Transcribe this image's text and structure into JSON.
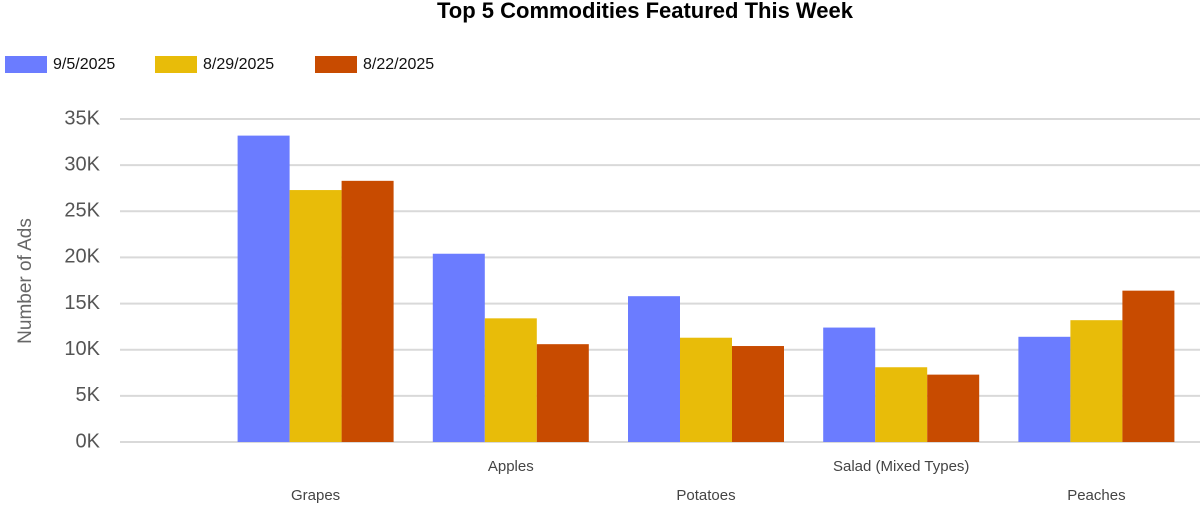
{
  "chart_data": {
    "type": "bar",
    "title": "Top 5 Commodities Featured This Week",
    "y_label": "Number of Ads",
    "categories": [
      "Grapes",
      "Apples",
      "Potatoes",
      "Salad (Mixed Types)",
      "Peaches"
    ],
    "series": [
      {
        "name": "9/5/2025",
        "color": "#6b7cff",
        "values": [
          33200,
          20400,
          15800,
          12400,
          11400
        ]
      },
      {
        "name": "8/29/2025",
        "color": "#e8bc09",
        "values": [
          27300,
          13400,
          11300,
          8100,
          13200
        ]
      },
      {
        "name": "8/22/2025",
        "color": "#c84b00",
        "values": [
          28300,
          10600,
          10400,
          7300,
          16400
        ]
      }
    ],
    "ylim": [
      0,
      35000
    ],
    "yticks": [
      {
        "value": 0,
        "label": "0K"
      },
      {
        "value": 5000,
        "label": "5K"
      },
      {
        "value": 10000,
        "label": "10K"
      },
      {
        "value": 15000,
        "label": "15K"
      },
      {
        "value": 20000,
        "label": "20K"
      },
      {
        "value": 25000,
        "label": "25K"
      },
      {
        "value": 30000,
        "label": "30K"
      },
      {
        "value": 35000,
        "label": "35K"
      }
    ],
    "grid": true,
    "legend": "top-left"
  }
}
